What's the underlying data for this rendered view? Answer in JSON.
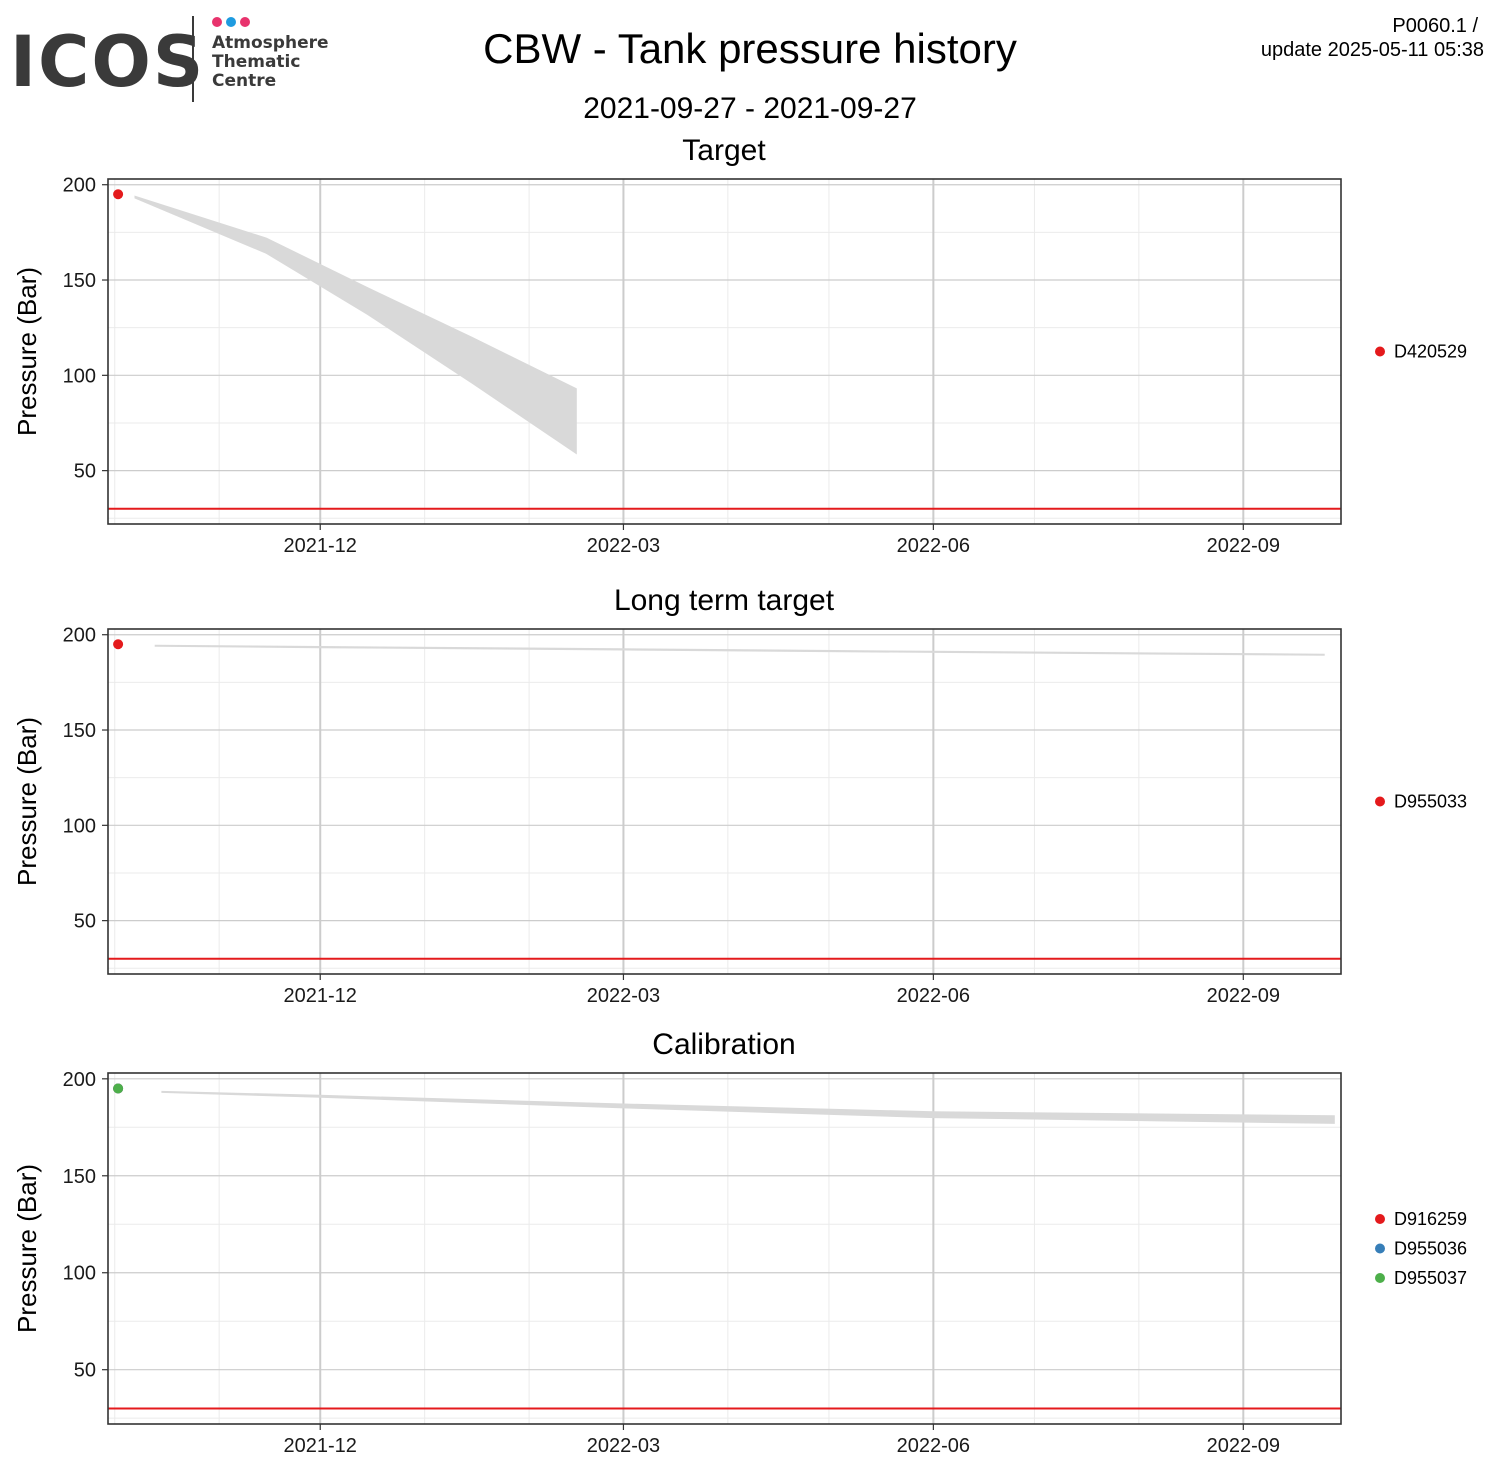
{
  "header": {
    "title": "CBW - Tank pressure history",
    "subtitle": "2021-09-27 - 2021-09-27",
    "version": "P0060.1 /",
    "update": "update  2025-05-11 05:38"
  },
  "logo": {
    "name": "ICOS",
    "subtitle_lines": [
      "Atmosphere",
      "Thematic",
      "Centre"
    ],
    "dot_colors": [
      "#e8336d",
      "#1e9be0",
      "#e8336d"
    ]
  },
  "colors": {
    "threshold": "#e41a1c",
    "band": "#d9d9d9",
    "grid_major": "#cccccc",
    "grid_minor": "#ebebeb",
    "series_red": "#e41a1c",
    "series_blue": "#377eb8",
    "series_green": "#4daf4a"
  },
  "chart_data": [
    {
      "type": "area",
      "title": "Target",
      "ylabel": "Pressure (Bar)",
      "xlabel": "",
      "x_ticks": [
        "2021-12",
        "2022-03",
        "2022-06",
        "2022-09"
      ],
      "x_range": [
        "2021-09-29",
        "2022-09-30"
      ],
      "ylim": [
        22,
        203
      ],
      "y_ticks": [
        50,
        100,
        150,
        200
      ],
      "grid": true,
      "threshold": 30,
      "legend": {
        "placement": "right",
        "entries": [
          {
            "name": "D420529",
            "color": "#e41a1c"
          }
        ]
      },
      "points": [
        {
          "series": "D420529",
          "x": "2021-10-02",
          "y": 195
        }
      ],
      "band": {
        "x": [
          "2021-10-07",
          "2021-11-15",
          "2021-12-15",
          "2022-01-15",
          "2022-02-15"
        ],
        "upper": [
          194,
          172,
          146,
          120,
          93
        ],
        "lower": [
          193,
          164,
          132,
          96,
          59
        ]
      }
    },
    {
      "type": "area",
      "title": "Long term target",
      "ylabel": "Pressure (Bar)",
      "xlabel": "",
      "x_ticks": [
        "2021-12",
        "2022-03",
        "2022-06",
        "2022-09"
      ],
      "x_range": [
        "2021-09-29",
        "2022-09-30"
      ],
      "ylim": [
        22,
        203
      ],
      "y_ticks": [
        50,
        100,
        150,
        200
      ],
      "grid": true,
      "threshold": 30,
      "legend": {
        "placement": "right",
        "entries": [
          {
            "name": "D955033",
            "color": "#e41a1c"
          }
        ]
      },
      "points": [
        {
          "series": "D955033",
          "x": "2021-10-02",
          "y": 195
        }
      ],
      "band": {
        "x": [
          "2021-10-13",
          "2021-12-01",
          "2022-03-01",
          "2022-06-01",
          "2022-09-25"
        ],
        "upper": [
          194.5,
          193.8,
          192.6,
          191.3,
          189.8
        ],
        "lower": [
          194.0,
          193.2,
          192.0,
          190.7,
          189.2
        ]
      }
    },
    {
      "type": "area",
      "title": "Calibration",
      "ylabel": "Pressure (Bar)",
      "xlabel": "",
      "x_ticks": [
        "2021-12",
        "2022-03",
        "2022-06",
        "2022-09"
      ],
      "x_range": [
        "2021-09-29",
        "2022-09-30"
      ],
      "ylim": [
        22,
        203
      ],
      "y_ticks": [
        50,
        100,
        150,
        200
      ],
      "grid": true,
      "threshold": 30,
      "legend": {
        "placement": "right",
        "entries": [
          {
            "name": "D916259",
            "color": "#e41a1c"
          },
          {
            "name": "D955036",
            "color": "#377eb8"
          },
          {
            "name": "D955037",
            "color": "#4daf4a"
          }
        ]
      },
      "points": [
        {
          "series": "D916259",
          "x": "2021-10-02",
          "y": 195
        },
        {
          "series": "D955036",
          "x": "2021-10-02",
          "y": 195
        },
        {
          "series": "D955037",
          "x": "2021-10-02",
          "y": 195
        }
      ],
      "band": {
        "x": [
          "2021-10-15",
          "2021-12-01",
          "2022-03-01",
          "2022-06-01",
          "2022-09-28"
        ],
        "upper": [
          193.5,
          191.5,
          187,
          183,
          181
        ],
        "lower": [
          193.0,
          190.5,
          185,
          180,
          177
        ]
      }
    }
  ]
}
